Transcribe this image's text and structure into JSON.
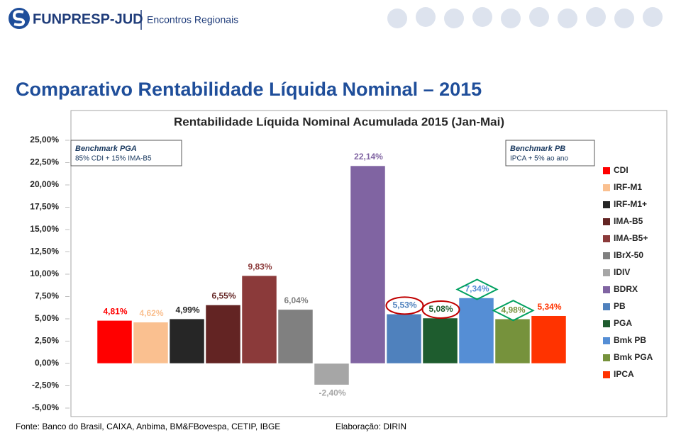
{
  "header": {
    "brand": "FUNPRESP-JUD",
    "subtitle": "Encontros Regionais"
  },
  "slide_title": "Comparativo Rentabilidade Líquida Nominal – 2015",
  "chart_data": {
    "type": "bar",
    "title": "Rentabilidade Líquida Nominal Acumulada 2015 (Jan-Mai)",
    "categories": [
      "CDI",
      "IRF-M1",
      "IRF-M1+",
      "IMA-B5",
      "IMA-B5+",
      "IBrX-50",
      "IDIV",
      "BDRX",
      "PB",
      "PGA",
      "Bmk PB",
      "Bmk PGA",
      "IPCA"
    ],
    "values": [
      4.81,
      4.62,
      4.99,
      6.55,
      9.83,
      6.04,
      -2.4,
      22.14,
      5.53,
      5.08,
      7.34,
      4.98,
      5.34
    ],
    "value_labels": [
      "4,81%",
      "4,62%",
      "4,99%",
      "6,55%",
      "9,83%",
      "6,04%",
      "-2,40%",
      "22,14%",
      "5,53%",
      "5,08%",
      "7,34%",
      "4,98%",
      "5,34%"
    ],
    "colors": [
      "#ff0000",
      "#fac090",
      "#262626",
      "#632423",
      "#8b3a3a",
      "#808080",
      "#a6a6a6",
      "#8064a2",
      "#4f81bd",
      "#1e5c2e",
      "#558ed5",
      "#76923c",
      "#ff3300"
    ],
    "ylim": [
      -5,
      25
    ],
    "yticks": [
      {
        "value": -5,
        "label": "-5,00%"
      },
      {
        "value": -2.5,
        "label": "-2,50%"
      },
      {
        "value": 0,
        "label": "0,00%"
      },
      {
        "value": 2.5,
        "label": "2,50%"
      },
      {
        "value": 5,
        "label": "5,00%"
      },
      {
        "value": 7.5,
        "label": "7,50%"
      },
      {
        "value": 10,
        "label": "10,00%"
      },
      {
        "value": 12.5,
        "label": "12,50%"
      },
      {
        "value": 15,
        "label": "15,00%"
      },
      {
        "value": 17.5,
        "label": "17,50%"
      },
      {
        "value": 20,
        "label": "20,00%"
      },
      {
        "value": 22.5,
        "label": "22,50%"
      },
      {
        "value": 25,
        "label": "25,00%"
      }
    ],
    "legend": "right",
    "annotations": [
      {
        "title": "Benchmark PGA",
        "text": "85% CDI + 15% IMA-B5"
      },
      {
        "title": "Benchmark PB",
        "text": "IPCA + 5% ao ano"
      }
    ]
  },
  "footer": {
    "source": "Fonte: Banco do Brasil, CAIXA, Anbima, BM&FBovespa, CETIP, IBGE",
    "credit": "Elaboração: DIRIN"
  }
}
